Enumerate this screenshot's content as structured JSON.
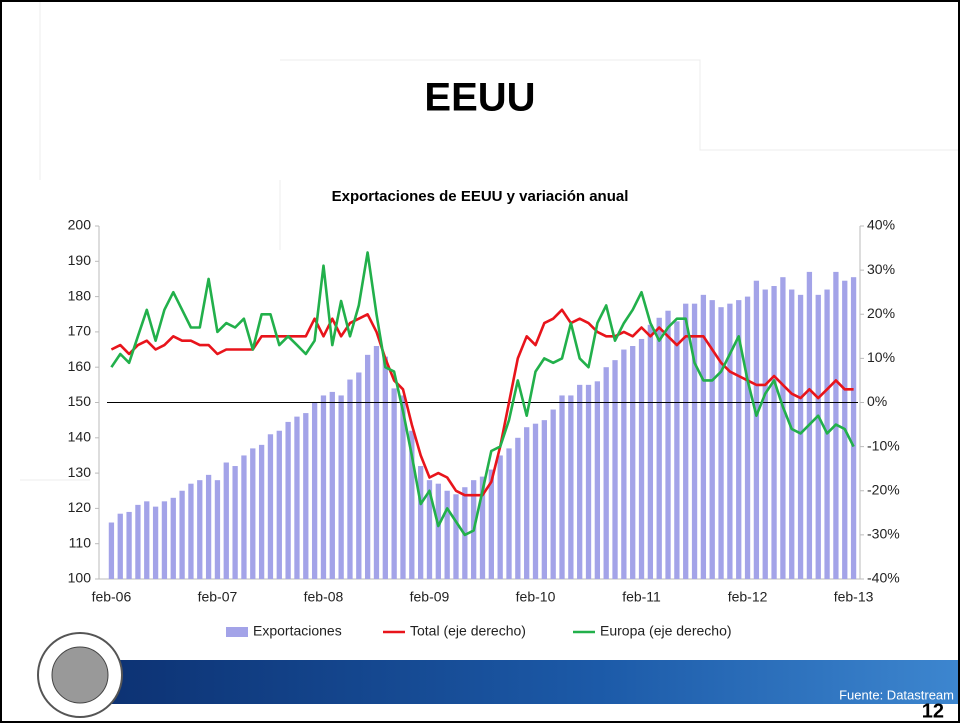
{
  "slide": {
    "title": "EEUU",
    "source": "Fuente: Datastream",
    "page": "12"
  },
  "chart_data": {
    "type": "bar_line",
    "title": "Exportaciones de EEUU y variación anual",
    "categories": [
      "feb-06",
      null,
      null,
      null,
      null,
      null,
      null,
      null,
      null,
      null,
      null,
      null,
      "feb-07",
      null,
      null,
      null,
      null,
      null,
      null,
      null,
      null,
      null,
      null,
      null,
      "feb-08",
      null,
      null,
      null,
      null,
      null,
      null,
      null,
      null,
      null,
      null,
      null,
      "feb-09",
      null,
      null,
      null,
      null,
      null,
      null,
      null,
      null,
      null,
      null,
      null,
      "feb-10",
      null,
      null,
      null,
      null,
      null,
      null,
      null,
      null,
      null,
      null,
      null,
      "feb-11",
      null,
      null,
      null,
      null,
      null,
      null,
      null,
      null,
      null,
      null,
      null,
      "feb-12",
      null,
      null,
      null,
      null,
      null,
      null,
      null,
      null,
      null,
      null,
      null,
      "feb-13"
    ],
    "series": [
      {
        "name": "Exportaciones",
        "color": "#a3a3e8",
        "kind": "bar",
        "axis": "y",
        "values": [
          116,
          118.5,
          119,
          121,
          122,
          120.5,
          122,
          123,
          125,
          127,
          128,
          129.5,
          128,
          133,
          132,
          135,
          137,
          138,
          141,
          142,
          144.5,
          146,
          147,
          150,
          152,
          153,
          152,
          156.5,
          158.5,
          163.5,
          166,
          163,
          154,
          152,
          142,
          132,
          128,
          127,
          125,
          124,
          126,
          128,
          129,
          131,
          135,
          137,
          140,
          143,
          144,
          145,
          148,
          152,
          152,
          155,
          155,
          156,
          160,
          162,
          165,
          166,
          168,
          172,
          174,
          176,
          173,
          178,
          178,
          180.5,
          179,
          177,
          178,
          179,
          180,
          184.5,
          182,
          183,
          185.5,
          182,
          180.5,
          187,
          180.5,
          182,
          187,
          184.5,
          185.5
        ]
      },
      {
        "name": "Total (eje derecho)",
        "color": "#e8141b",
        "kind": "line",
        "axis": "y2",
        "values": [
          12,
          13,
          11,
          13,
          14,
          12,
          13,
          15,
          14,
          14,
          13,
          13,
          11,
          12,
          12,
          12,
          12,
          15,
          15,
          15,
          15,
          15,
          15,
          19,
          15,
          19,
          15,
          18,
          19,
          20,
          16,
          10,
          5,
          3,
          -5,
          -12,
          -17,
          -16,
          -17,
          -20,
          -21,
          -21,
          -21,
          -18,
          -10,
          0,
          10,
          15,
          13,
          18,
          19,
          21,
          18,
          19,
          18,
          16,
          15,
          15,
          16,
          15,
          17,
          15,
          17,
          15,
          13,
          15,
          15,
          15,
          12,
          9,
          7,
          6,
          5,
          4,
          4,
          6,
          4,
          2,
          1,
          3,
          1,
          3,
          5,
          3,
          3
        ]
      },
      {
        "name": "Europa (eje derecho)",
        "color": "#22b04b",
        "kind": "line",
        "axis": "y2",
        "values": [
          8,
          11,
          9,
          15,
          21,
          14,
          21,
          25,
          21,
          17,
          17,
          28,
          16,
          18,
          17,
          19,
          12,
          20,
          20,
          13,
          15,
          13,
          11,
          14,
          31,
          13,
          23,
          15,
          22,
          34,
          20,
          8,
          7,
          -2,
          -12,
          -23,
          -20,
          -28,
          -24,
          -27,
          -30,
          -29,
          -20,
          -11,
          -10,
          -4,
          5,
          -3,
          7,
          10,
          9,
          10,
          18,
          10,
          8,
          18,
          22,
          14,
          18,
          21,
          25,
          18,
          14,
          17,
          19,
          19,
          9,
          5,
          5,
          7,
          11,
          15,
          5,
          -3,
          2,
          5,
          -1,
          -6,
          -7,
          -5,
          -3,
          -7,
          -5,
          -6,
          -10
        ]
      }
    ],
    "ylim": [
      100,
      200
    ],
    "yticks": [
      100,
      110,
      120,
      130,
      140,
      150,
      160,
      170,
      180,
      190,
      200
    ],
    "y2lim": [
      -40,
      40
    ],
    "y2ticks": [
      {
        "value": -40,
        "label": "-40%"
      },
      {
        "value": -30,
        "label": "-30%"
      },
      {
        "value": -20,
        "label": "-20%"
      },
      {
        "value": -10,
        "label": "-10%"
      },
      {
        "value": 0,
        "label": "0%"
      },
      {
        "value": 10,
        "label": "10%"
      },
      {
        "value": 20,
        "label": "20%"
      },
      {
        "value": 30,
        "label": "30%"
      },
      {
        "value": 40,
        "label": "40%"
      }
    ],
    "legend": "bottom"
  }
}
